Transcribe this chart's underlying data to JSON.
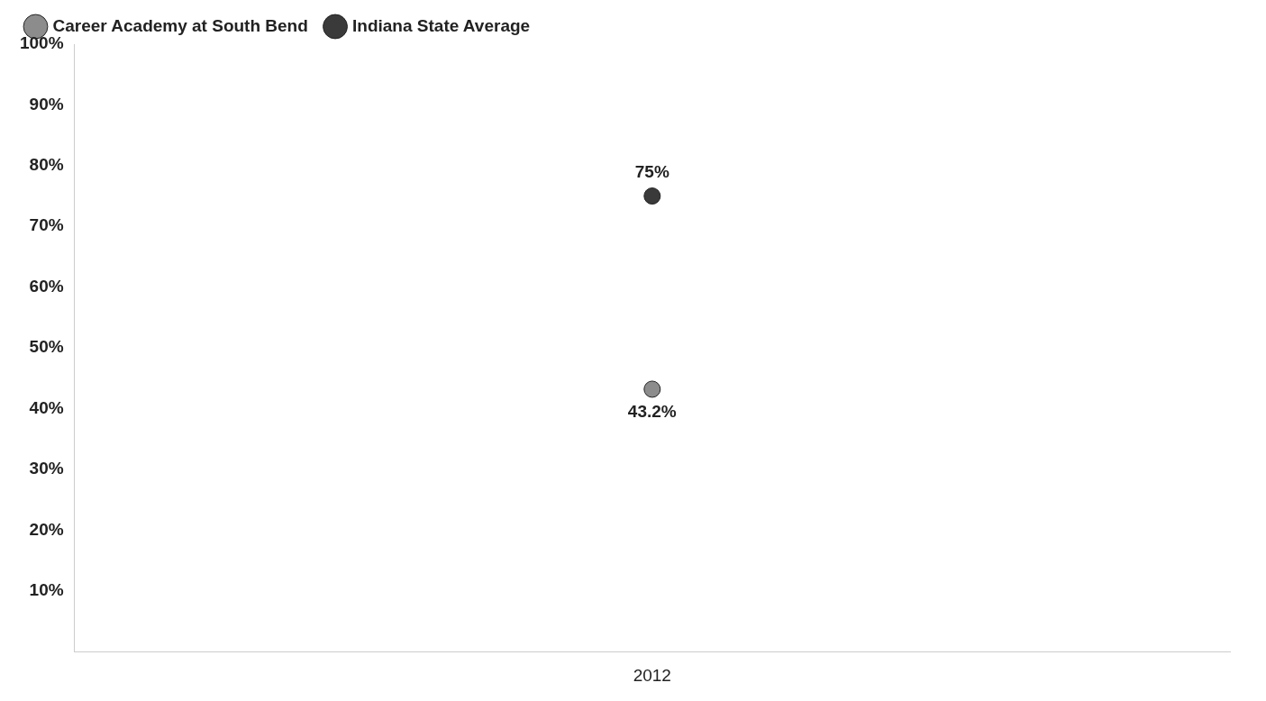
{
  "chart_data": {
    "type": "scatter",
    "categories": [
      "2012"
    ],
    "series": [
      {
        "name": "Career Academy at South Bend",
        "color": "#8c8c8c",
        "values": [
          43.2
        ],
        "value_labels": [
          "43.2%"
        ]
      },
      {
        "name": "Indiana State Average",
        "color": "#3a3a3a",
        "values": [
          75
        ],
        "value_labels": [
          "75%"
        ]
      }
    ],
    "ylim": [
      0,
      100
    ],
    "yticks": [
      {
        "value": 10,
        "label": "10%"
      },
      {
        "value": 20,
        "label": "20%"
      },
      {
        "value": 30,
        "label": "30%"
      },
      {
        "value": 40,
        "label": "40%"
      },
      {
        "value": 50,
        "label": "50%"
      },
      {
        "value": 60,
        "label": "60%"
      },
      {
        "value": 70,
        "label": "70%"
      },
      {
        "value": 80,
        "label": "80%"
      },
      {
        "value": 90,
        "label": "90%"
      },
      {
        "value": 100,
        "label": "100%"
      }
    ],
    "grid": false,
    "legend": "top left",
    "marker": "circle"
  }
}
